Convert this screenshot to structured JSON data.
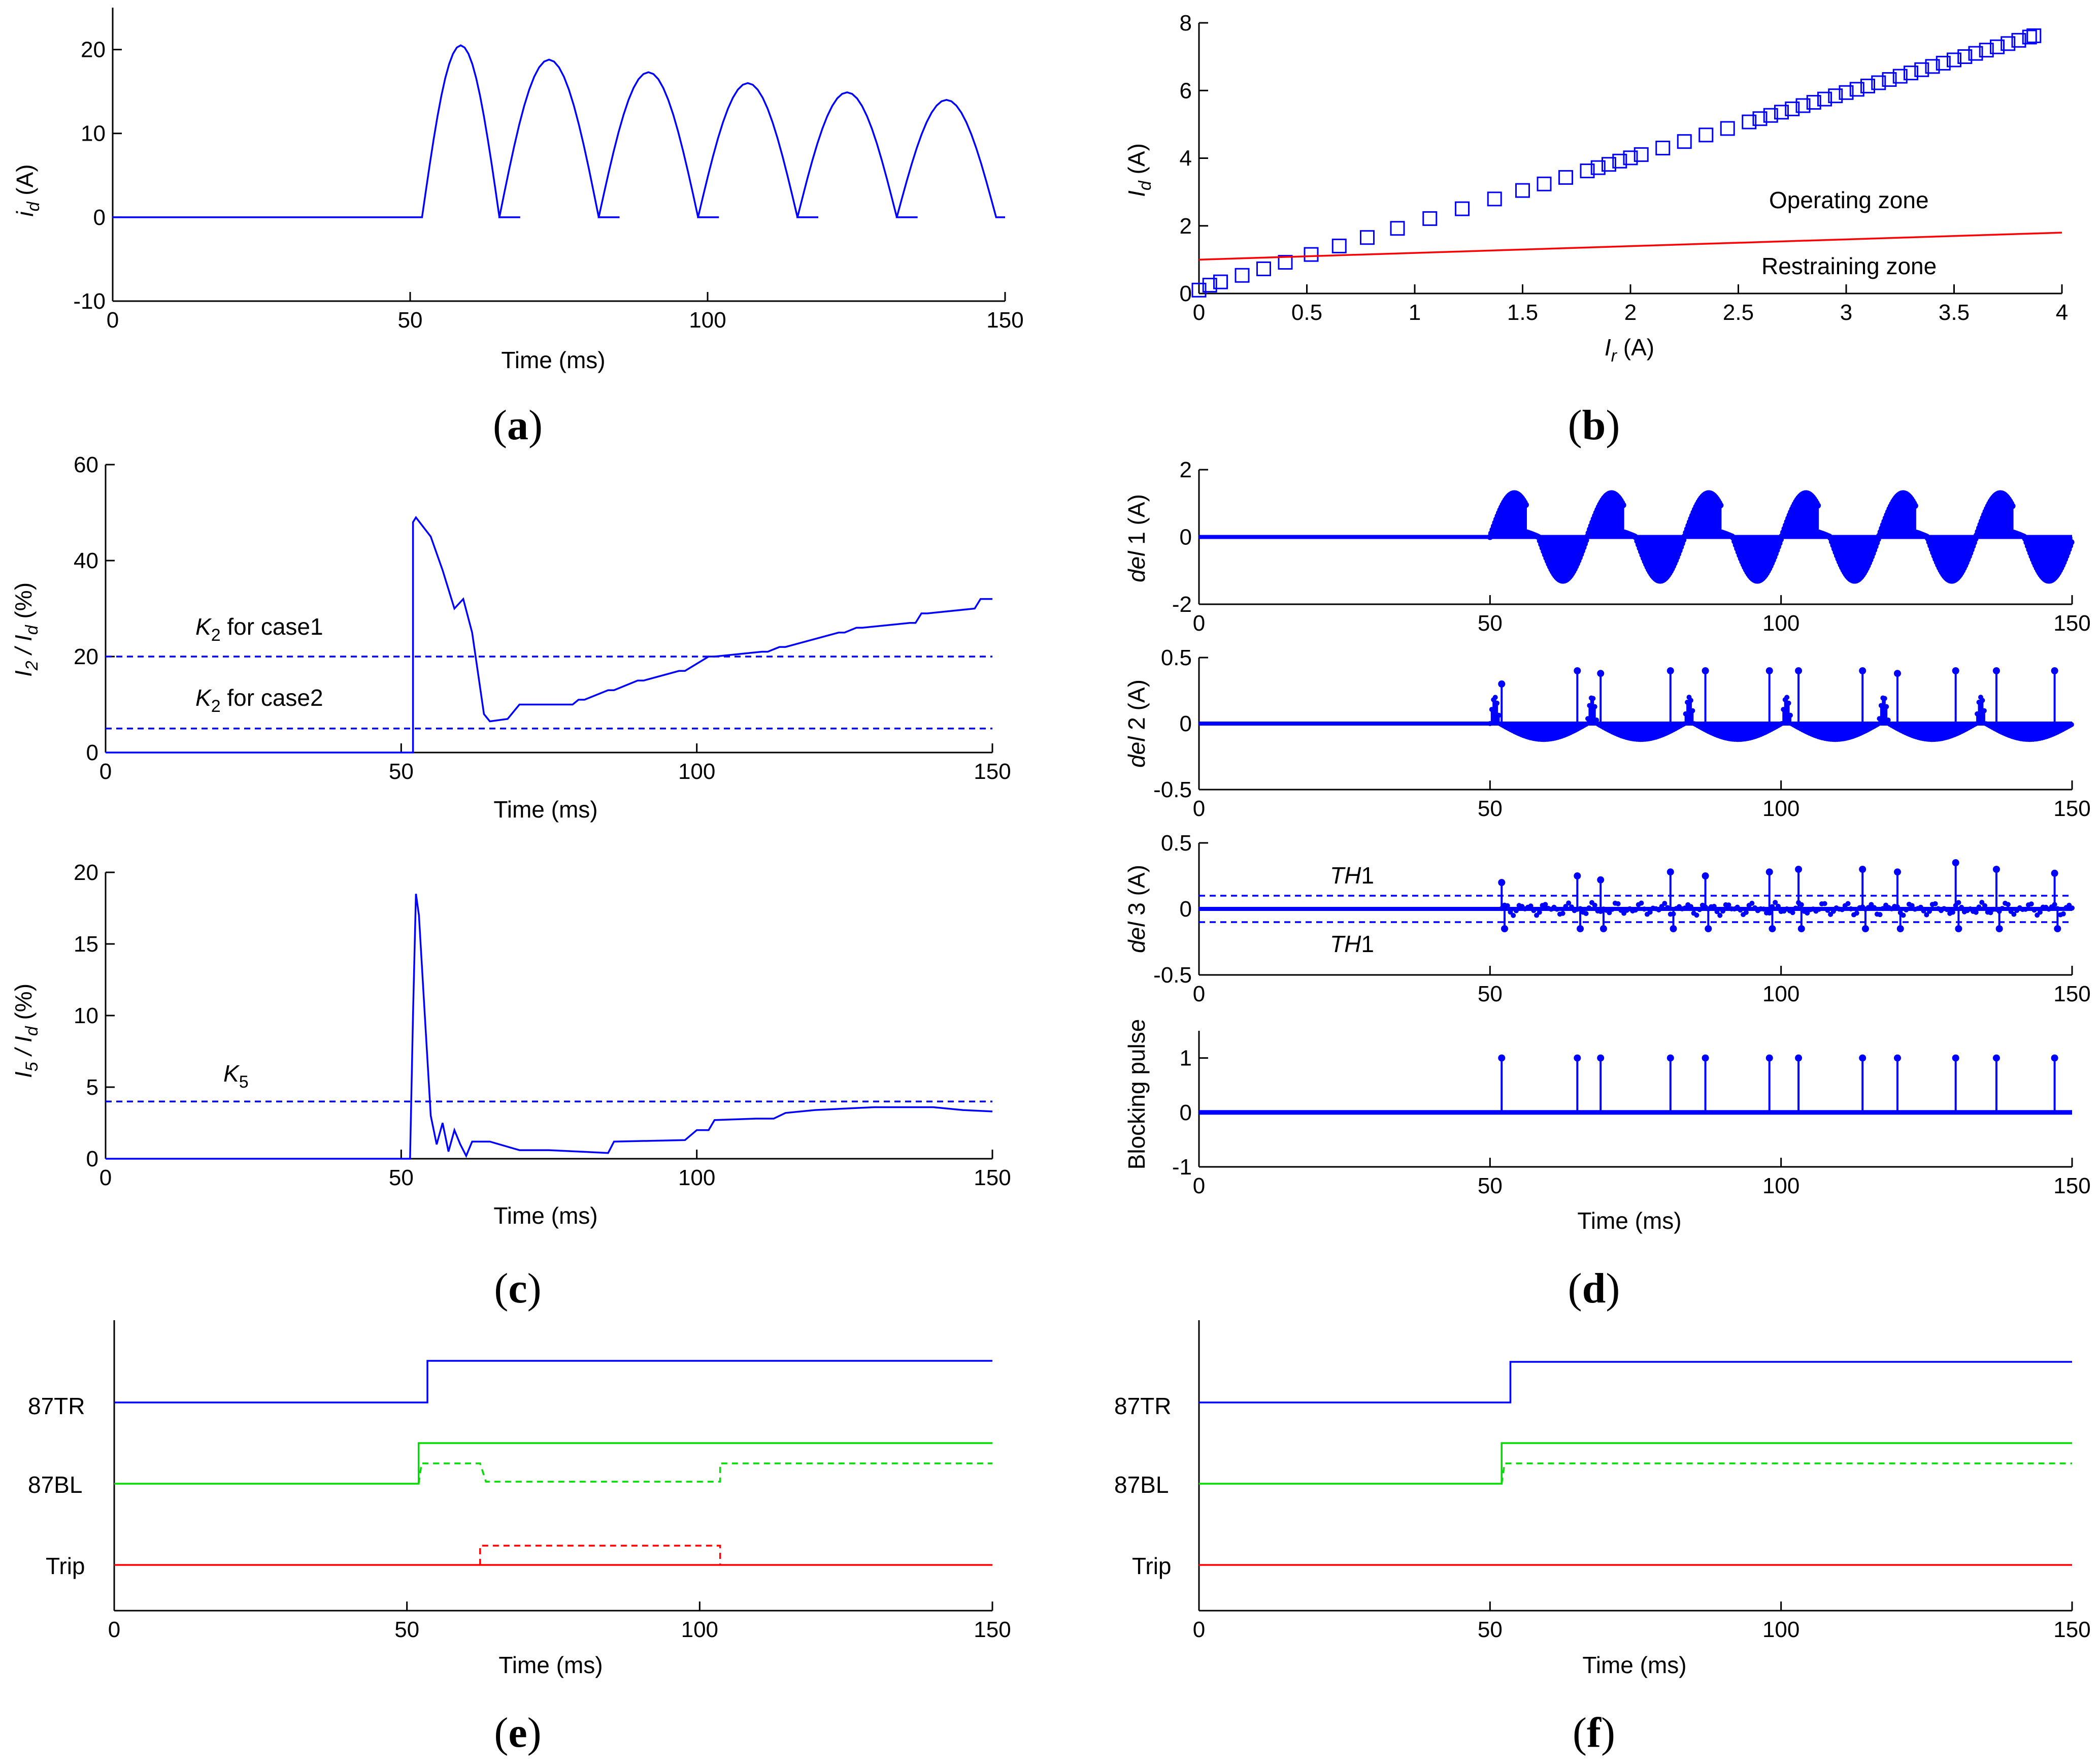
{
  "panels": {
    "a": {
      "caption": "a",
      "xlabel": "Time (ms)",
      "ylabel_var": "i",
      "ylabel_sub": "d",
      "ylabel_unit": "(A)"
    },
    "b": {
      "caption": "b",
      "xlabel_var": "I",
      "xlabel_sub": "r",
      "xlabel_unit": "(A)",
      "ylabel_var": "I",
      "ylabel_sub": "d",
      "ylabel_unit": "(A)",
      "zone_operating": "Operating zone",
      "zone_restraining": "Restraining zone"
    },
    "c": {
      "caption": "c",
      "top_ylabel": "I2 / Id (%)",
      "top_ylabel_parts": [
        "I",
        "2",
        " / I",
        "d",
        " (%)"
      ],
      "bottom_ylabel_parts": [
        "I",
        "5",
        " / I",
        "d",
        " (%)"
      ],
      "k2_case1_k": "K",
      "k2_case1_sub": "2",
      "k2_case1_text": "for case1",
      "k2_case2_k": "K",
      "k2_case2_sub": "2",
      "k2_case2_text": "for case2",
      "k5_k": "K",
      "k5_sub": "5",
      "xlabel": "Time (ms)"
    },
    "d": {
      "caption": "d",
      "ylabel1_var": "del",
      "ylabel1_rest": "1 (A)",
      "ylabel2_var": "del",
      "ylabel2_rest": "2 (A)",
      "ylabel3_var": "del",
      "ylabel3_rest": "3 (A)",
      "ylabel4": "Blocking pulse",
      "th_var": "TH",
      "th_num": "1",
      "xlabel": "Time (ms)"
    },
    "e": {
      "caption": "e",
      "labels": [
        "87TR",
        "87BL",
        "Trip"
      ],
      "xlabel": "Time (ms)"
    },
    "f": {
      "caption": "f",
      "labels": [
        "87TR",
        "87BL",
        "Trip"
      ],
      "xlabel": "Time (ms)"
    }
  },
  "colors": {
    "blue": "#0000ff",
    "green": "#00dd00",
    "red": "#ff0000"
  },
  "chart_data": [
    {
      "id": "a",
      "type": "line",
      "xlabel": "Time (ms)",
      "ylabel": "id (A)",
      "xlim": [
        0,
        150
      ],
      "ylim": [
        -10,
        25
      ],
      "xticks": [
        0,
        50,
        100,
        150
      ],
      "yticks": [
        -10,
        0,
        10,
        20
      ],
      "series": [
        {
          "name": "id",
          "description": "zero until 52 ms, then half-wave inrush pulses",
          "peaks": [
            [
              58.5,
              20.5
            ],
            [
              75.2,
              18.8
            ],
            [
              91.9,
              17.3
            ],
            [
              108.6,
              16.0
            ],
            [
              125.3,
              14.9
            ],
            [
              142.0,
              14.0
            ]
          ]
        }
      ]
    },
    {
      "id": "b",
      "type": "scatter",
      "xlabel": "Ir (A)",
      "ylabel": "Id (A)",
      "xlim": [
        0,
        4
      ],
      "ylim": [
        0,
        8
      ],
      "xticks": [
        0,
        0.5,
        1,
        1.5,
        2,
        2.5,
        3,
        3.5,
        4
      ],
      "yticks": [
        0,
        2,
        4,
        6,
        8
      ],
      "series": [
        {
          "name": "operating points",
          "marker": "square",
          "x": [
            0,
            0.05,
            0.1,
            0.2,
            0.3,
            0.4,
            0.52,
            0.65,
            0.78,
            0.92,
            1.07,
            1.22,
            1.37,
            1.5,
            1.6,
            1.7,
            1.8,
            1.85,
            1.9,
            1.95,
            2.0,
            2.05,
            2.15,
            2.25,
            2.35,
            2.45,
            2.55,
            2.6,
            2.65,
            2.7,
            2.75,
            2.8,
            2.85,
            2.9,
            2.95,
            3.0,
            3.05,
            3.1,
            3.15,
            3.2,
            3.25,
            3.3,
            3.35,
            3.4,
            3.45,
            3.5,
            3.55,
            3.6,
            3.65,
            3.7,
            3.75,
            3.8,
            3.85,
            3.87
          ]
        },
        {
          "name": "characteristic",
          "type": "line",
          "x": [
            0,
            4
          ],
          "y": [
            1.0,
            1.8
          ]
        }
      ]
    },
    {
      "id": "c-top",
      "type": "line",
      "xlabel": "Time (ms)",
      "ylabel": "I2 / Id (%)",
      "xlim": [
        0,
        150
      ],
      "ylim": [
        0,
        60
      ],
      "xticks": [
        0,
        50,
        100,
        150
      ],
      "yticks": [
        0,
        20,
        40,
        60
      ],
      "series": [
        {
          "name": "I2/Id",
          "x": [
            0,
            52,
            52,
            52.5,
            55,
            57,
            59,
            60.5,
            62,
            64,
            65,
            68,
            70,
            79,
            80,
            81,
            85,
            86,
            90,
            91,
            97,
            98,
            102,
            103,
            111,
            112,
            114,
            115,
            124,
            125,
            127,
            128,
            136,
            137,
            138,
            139,
            147,
            148,
            150
          ],
          "y": [
            0,
            0,
            48,
            49,
            45,
            38,
            30,
            32,
            25,
            8,
            6.5,
            7,
            10,
            10,
            11,
            11,
            13,
            13,
            15,
            15,
            17,
            17,
            20,
            20,
            21,
            21,
            22,
            22,
            25,
            25,
            26,
            26,
            27,
            27,
            29,
            29,
            30,
            32,
            32
          ]
        },
        {
          "name": "K2 for case1",
          "x": [
            0,
            150
          ],
          "y": [
            20,
            20
          ],
          "style": "dashed"
        },
        {
          "name": "K2 for case2",
          "x": [
            0,
            150
          ],
          "y": [
            5,
            5
          ],
          "style": "dashed"
        }
      ]
    },
    {
      "id": "c-bottom",
      "type": "line",
      "xlabel": "Time (ms)",
      "ylabel": "I5 / Id (%)",
      "xlim": [
        0,
        150
      ],
      "ylim": [
        0,
        20
      ],
      "xticks": [
        0,
        50,
        100,
        150
      ],
      "yticks": [
        0,
        5,
        10,
        15,
        20
      ],
      "series": [
        {
          "name": "I5/Id",
          "x": [
            0,
            51.5,
            52,
            52.5,
            53,
            54,
            55,
            56,
            57,
            58,
            59,
            60,
            61,
            62,
            65,
            70,
            75,
            80,
            85,
            86,
            98,
            100,
            102,
            103,
            110,
            113,
            115,
            120,
            125,
            130,
            140,
            145,
            150
          ],
          "y": [
            0,
            0,
            10,
            18.5,
            17,
            10,
            3,
            1,
            2.5,
            0.5,
            2,
            1,
            0.2,
            1.2,
            1.2,
            0.6,
            0.6,
            0.5,
            0.4,
            1.2,
            1.3,
            2.0,
            2.0,
            2.7,
            2.8,
            2.8,
            3.2,
            3.4,
            3.5,
            3.6,
            3.6,
            3.4,
            3.3
          ]
        },
        {
          "name": "K5",
          "x": [
            0,
            150
          ],
          "y": [
            4,
            4
          ],
          "style": "dashed"
        }
      ]
    },
    {
      "id": "d-1",
      "type": "scatter",
      "ylabel": "del1 (A)",
      "xlim": [
        0,
        150
      ],
      "ylim": [
        -2,
        2
      ],
      "xticks": [
        0,
        50,
        100,
        150
      ],
      "yticks": [
        -2,
        0,
        2
      ],
      "description": "oscillating bursts from 50 ms, amplitude about 1.3 A"
    },
    {
      "id": "d-2",
      "type": "scatter",
      "ylabel": "del2 (A)",
      "xlim": [
        0,
        150
      ],
      "ylim": [
        -0.5,
        0.5
      ],
      "xticks": [
        0,
        50,
        100,
        150
      ],
      "yticks": [
        -0.5,
        0,
        0.5
      ],
      "spikes_x": [
        52,
        65,
        69,
        81,
        87,
        98,
        103,
        114,
        120,
        130,
        137,
        147
      ],
      "spikes_y": [
        0.3,
        0.4,
        0.38,
        0.4,
        0.4,
        0.4,
        0.4,
        0.4,
        0.38,
        0.4,
        0.4,
        0.4
      ]
    },
    {
      "id": "d-3",
      "type": "scatter",
      "ylabel": "del3 (A)",
      "xlim": [
        0,
        150
      ],
      "ylim": [
        -0.5,
        0.5
      ],
      "xticks": [
        0,
        50,
        100,
        150
      ],
      "yticks": [
        -0.5,
        0,
        0.5
      ],
      "threshold": 0.1,
      "spikes_x": [
        52,
        65,
        69,
        81,
        87,
        98,
        103,
        114,
        120,
        130,
        137,
        147
      ],
      "spikes_y": [
        0.2,
        0.25,
        0.22,
        0.28,
        0.25,
        0.28,
        0.3,
        0.3,
        0.28,
        0.35,
        0.3,
        0.27
      ]
    },
    {
      "id": "d-4",
      "type": "bar",
      "ylabel": "Blocking pulse",
      "xlabel": "Time (ms)",
      "xlim": [
        0,
        150
      ],
      "ylim": [
        -1,
        1.5
      ],
      "xticks": [
        0,
        50,
        100,
        150
      ],
      "yticks": [
        -1,
        0,
        1
      ],
      "pulses_x": [
        52,
        65,
        69,
        81,
        87,
        98,
        103,
        114,
        120,
        130,
        137,
        147
      ]
    },
    {
      "id": "e",
      "type": "line",
      "xlabel": "Time (ms)",
      "xlim": [
        0,
        150
      ],
      "xticks": [
        0,
        50,
        100,
        150
      ],
      "series": [
        {
          "name": "87TR",
          "step_at": 53.5
        },
        {
          "name": "87BL",
          "step_at": 52
        },
        {
          "name": "87BL dashed",
          "high": [
            [
              52,
              62.5
            ],
            [
              103.5,
              150
            ]
          ],
          "low": [
            62.5,
            103.5
          ]
        },
        {
          "name": "Trip dashed",
          "high": [
            [
              62.5,
              103.5
            ]
          ]
        }
      ]
    },
    {
      "id": "f",
      "type": "line",
      "xlabel": "Time (ms)",
      "xlim": [
        0,
        150
      ],
      "xticks": [
        0,
        50,
        100,
        150
      ],
      "series": [
        {
          "name": "87TR",
          "step_at": 53.5
        },
        {
          "name": "87BL",
          "step_at": 52
        },
        {
          "name": "87BL dashed",
          "high": [
            [
              52,
              150
            ]
          ]
        },
        {
          "name": "Trip",
          "step_at": null
        }
      ]
    }
  ]
}
